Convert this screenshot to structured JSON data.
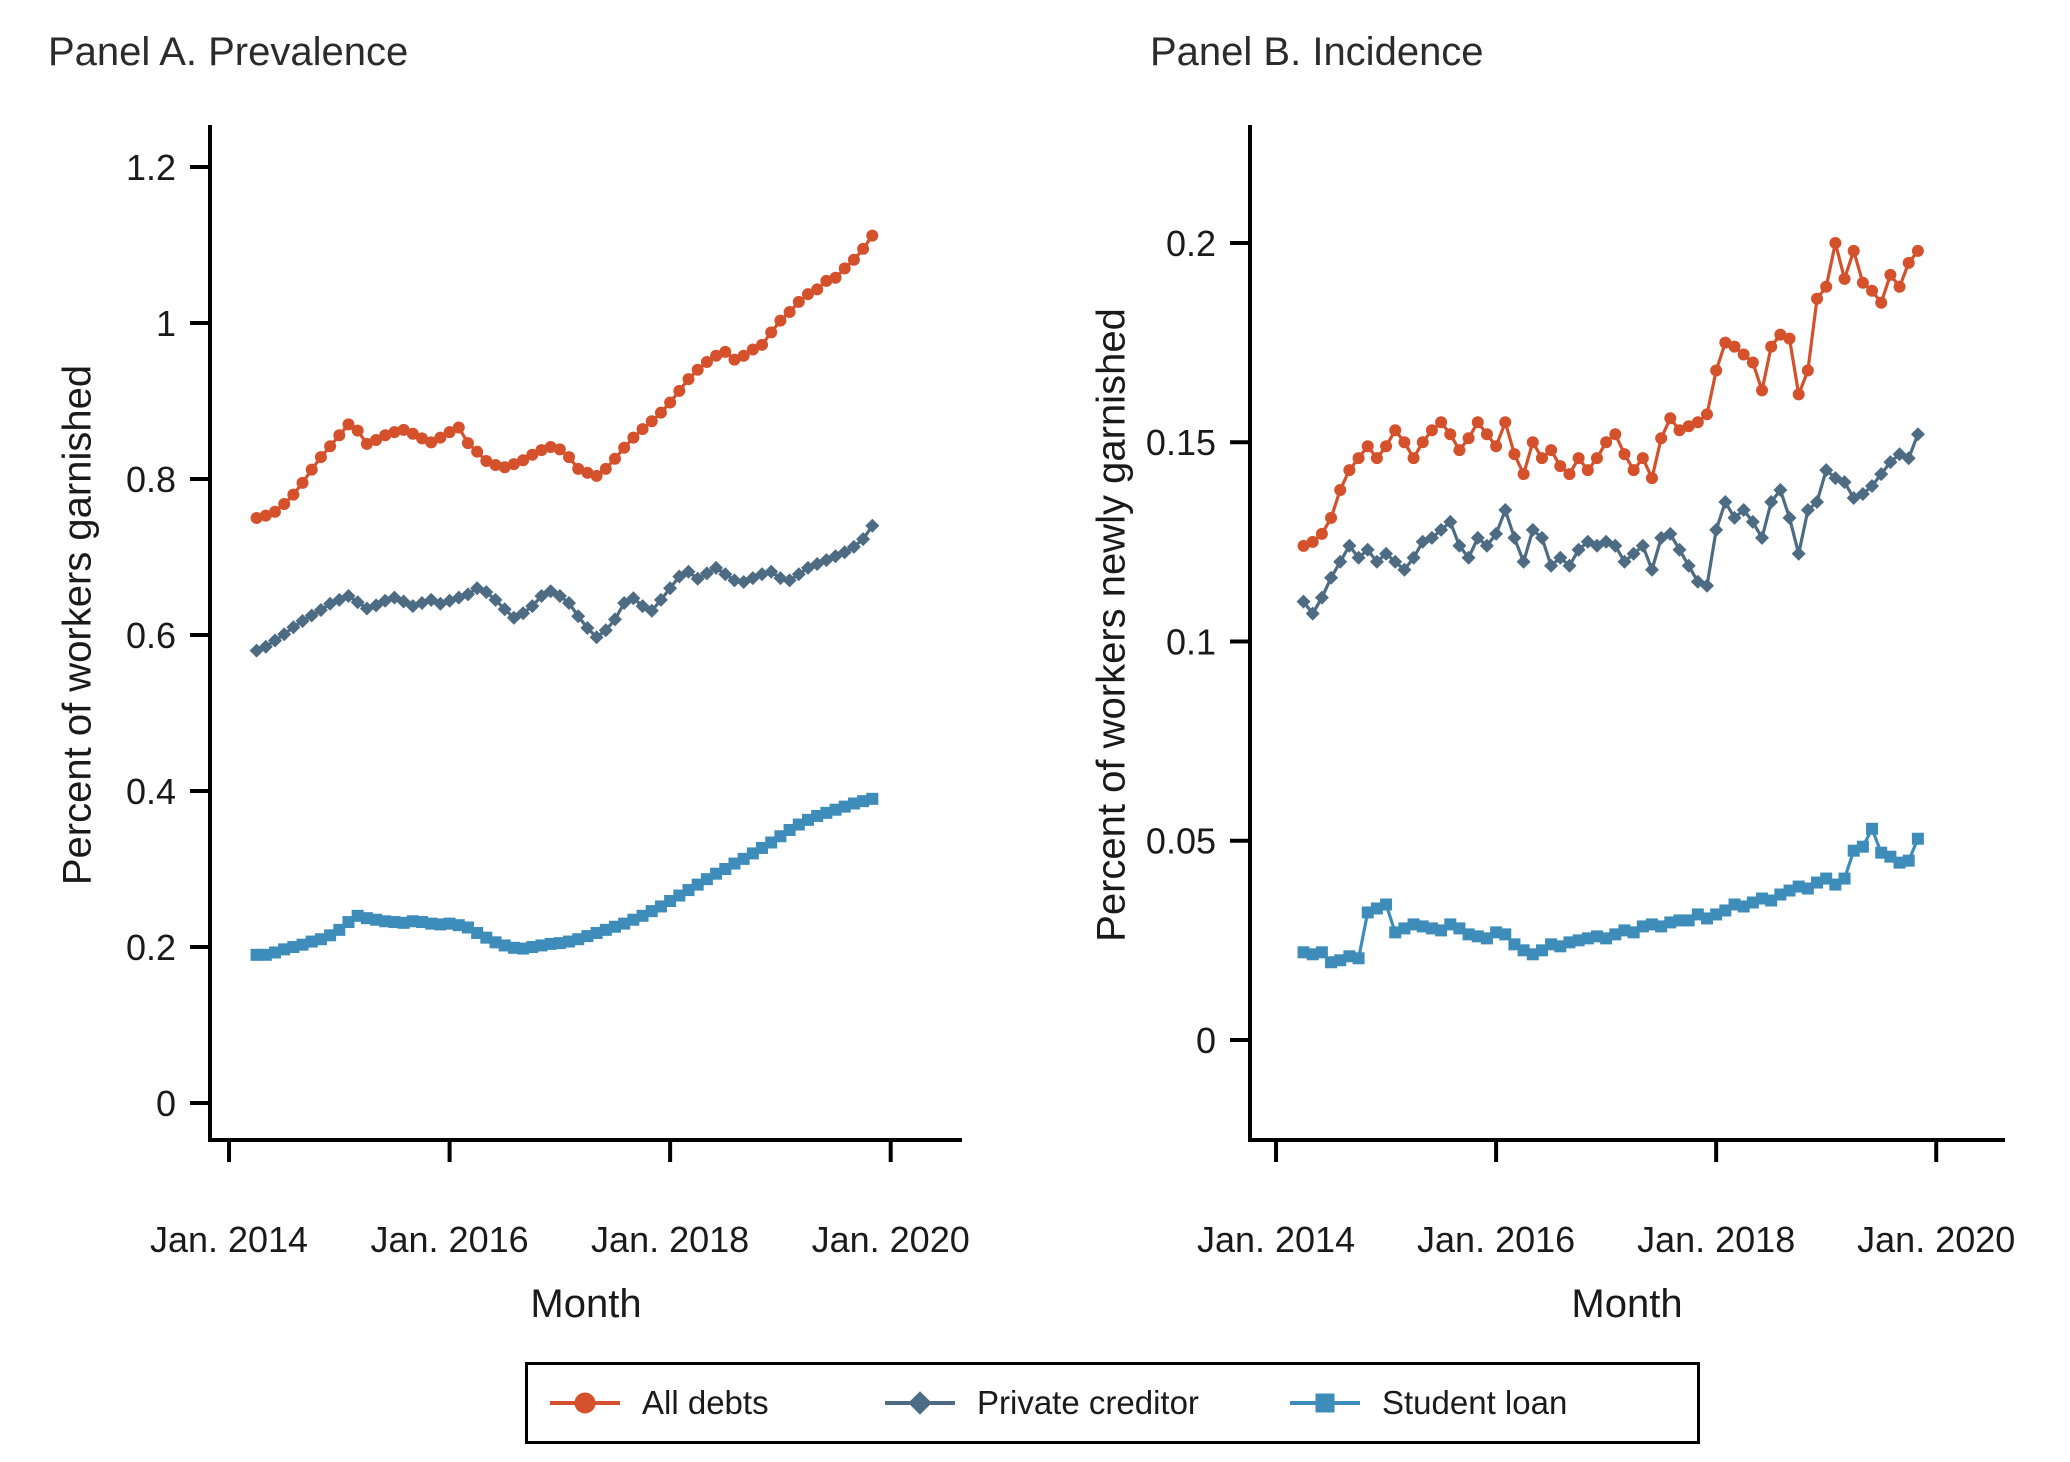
{
  "figure": {
    "panel_a_title": "Panel A. Prevalence",
    "panel_b_title": "Panel B. Incidence"
  },
  "colors": {
    "all_debts": "#d4512c",
    "private_creditor": "#4d6b82",
    "student_loan": "#3e8cba",
    "axis": "#000000",
    "text": "#1a1a1a"
  },
  "legend": {
    "items": [
      {
        "label": "All debts",
        "marker": "circle",
        "color": "#d4512c"
      },
      {
        "label": "Private creditor",
        "marker": "diamond",
        "color": "#4d6b82"
      },
      {
        "label": "Student loan",
        "marker": "square",
        "color": "#3e8cba"
      }
    ]
  },
  "chart_data": [
    {
      "type": "line",
      "title": "Panel A. Prevalence",
      "xlabel": "Month",
      "ylabel": "Percent of workers garnished",
      "x_unit": "month",
      "x_start": "2014-04",
      "x_start_month": 3,
      "frequency": "monthly",
      "grid": false,
      "xlim": [
        -2.07,
        79.76
      ],
      "ylim": [
        -0.0474,
        1.2538
      ],
      "xticks": [
        {
          "m": 0,
          "label": "Jan. 2014"
        },
        {
          "m": 24,
          "label": "Jan. 2016"
        },
        {
          "m": 48,
          "label": "Jan. 2018"
        },
        {
          "m": 72,
          "label": "Jan. 2020"
        }
      ],
      "yticks": [
        {
          "v": 0,
          "label": "0"
        },
        {
          "v": 0.2,
          "label": "0.2"
        },
        {
          "v": 0.4,
          "label": "0.4"
        },
        {
          "v": 0.6,
          "label": "0.6"
        },
        {
          "v": 0.8,
          "label": "0.8"
        },
        {
          "v": 1.0,
          "label": "1"
        },
        {
          "v": 1.2,
          "label": "1.2"
        }
      ],
      "series": [
        {
          "name": "All debts",
          "marker": "circle",
          "color": "#d4512c",
          "values": [
            0.75,
            0.753,
            0.758,
            0.768,
            0.78,
            0.795,
            0.812,
            0.828,
            0.842,
            0.856,
            0.87,
            0.862,
            0.845,
            0.85,
            0.856,
            0.86,
            0.863,
            0.858,
            0.852,
            0.847,
            0.853,
            0.86,
            0.866,
            0.846,
            0.835,
            0.823,
            0.818,
            0.815,
            0.819,
            0.824,
            0.831,
            0.837,
            0.841,
            0.838,
            0.828,
            0.813,
            0.808,
            0.804,
            0.813,
            0.826,
            0.84,
            0.853,
            0.864,
            0.874,
            0.885,
            0.898,
            0.913,
            0.928,
            0.94,
            0.95,
            0.958,
            0.963,
            0.953,
            0.958,
            0.966,
            0.972,
            0.988,
            1.003,
            1.014,
            1.027,
            1.037,
            1.043,
            1.054,
            1.058,
            1.07,
            1.081,
            1.095,
            1.112
          ]
        },
        {
          "name": "Private creditor",
          "marker": "diamond",
          "color": "#4d6b82",
          "values": [
            0.58,
            0.585,
            0.593,
            0.601,
            0.61,
            0.618,
            0.625,
            0.632,
            0.64,
            0.645,
            0.65,
            0.642,
            0.634,
            0.638,
            0.644,
            0.648,
            0.643,
            0.637,
            0.641,
            0.645,
            0.64,
            0.644,
            0.648,
            0.652,
            0.66,
            0.655,
            0.645,
            0.633,
            0.622,
            0.628,
            0.637,
            0.65,
            0.656,
            0.65,
            0.641,
            0.624,
            0.609,
            0.597,
            0.606,
            0.62,
            0.641,
            0.647,
            0.637,
            0.631,
            0.645,
            0.66,
            0.675,
            0.681,
            0.672,
            0.679,
            0.686,
            0.678,
            0.67,
            0.668,
            0.673,
            0.678,
            0.681,
            0.673,
            0.67,
            0.678,
            0.686,
            0.691,
            0.696,
            0.701,
            0.706,
            0.713,
            0.723,
            0.74
          ]
        },
        {
          "name": "Student loan",
          "marker": "square",
          "color": "#3e8cba",
          "values": [
            0.19,
            0.19,
            0.193,
            0.197,
            0.2,
            0.203,
            0.207,
            0.21,
            0.215,
            0.222,
            0.232,
            0.24,
            0.237,
            0.235,
            0.233,
            0.232,
            0.231,
            0.233,
            0.232,
            0.23,
            0.229,
            0.23,
            0.228,
            0.225,
            0.218,
            0.212,
            0.206,
            0.202,
            0.199,
            0.198,
            0.2,
            0.202,
            0.204,
            0.205,
            0.207,
            0.21,
            0.214,
            0.218,
            0.222,
            0.226,
            0.23,
            0.235,
            0.24,
            0.246,
            0.252,
            0.259,
            0.266,
            0.273,
            0.28,
            0.287,
            0.294,
            0.3,
            0.307,
            0.313,
            0.32,
            0.327,
            0.334,
            0.342,
            0.35,
            0.357,
            0.363,
            0.368,
            0.372,
            0.376,
            0.38,
            0.384,
            0.387,
            0.39
          ]
        }
      ]
    },
    {
      "type": "line",
      "title": "Panel B. Incidence",
      "xlabel": "Month",
      "ylabel": "Percent of workers newly garnished",
      "x_unit": "month",
      "x_start": "2014-04",
      "x_start_month": 3,
      "frequency": "monthly",
      "grid": false,
      "xlim": [
        -2.84,
        79.5
      ],
      "ylim": [
        -0.0251,
        0.2296
      ],
      "xticks": [
        {
          "m": 0,
          "label": "Jan. 2014"
        },
        {
          "m": 24,
          "label": "Jan. 2016"
        },
        {
          "m": 48,
          "label": "Jan. 2018"
        },
        {
          "m": 72,
          "label": "Jan. 2020"
        }
      ],
      "yticks": [
        {
          "v": 0,
          "label": "0"
        },
        {
          "v": 0.05,
          "label": "0.05"
        },
        {
          "v": 0.1,
          "label": "0.1"
        },
        {
          "v": 0.15,
          "label": "0.15"
        },
        {
          "v": 0.2,
          "label": "0.2"
        }
      ],
      "series": [
        {
          "name": "All debts",
          "marker": "circle",
          "color": "#d4512c",
          "values": [
            0.124,
            0.125,
            0.127,
            0.131,
            0.138,
            0.143,
            0.146,
            0.149,
            0.146,
            0.149,
            0.153,
            0.15,
            0.146,
            0.15,
            0.153,
            0.155,
            0.152,
            0.148,
            0.151,
            0.155,
            0.152,
            0.149,
            0.155,
            0.147,
            0.142,
            0.15,
            0.146,
            0.148,
            0.144,
            0.142,
            0.146,
            0.143,
            0.146,
            0.15,
            0.152,
            0.147,
            0.143,
            0.146,
            0.141,
            0.151,
            0.156,
            0.153,
            0.154,
            0.155,
            0.157,
            0.168,
            0.175,
            0.174,
            0.172,
            0.17,
            0.163,
            0.174,
            0.177,
            0.176,
            0.162,
            0.168,
            0.186,
            0.189,
            0.2,
            0.191,
            0.198,
            0.19,
            0.188,
            0.185,
            0.192,
            0.189,
            0.195,
            0.198
          ]
        },
        {
          "name": "Private creditor",
          "marker": "diamond",
          "color": "#4d6b82",
          "values": [
            0.11,
            0.107,
            0.111,
            0.116,
            0.12,
            0.124,
            0.121,
            0.123,
            0.12,
            0.122,
            0.12,
            0.118,
            0.121,
            0.125,
            0.126,
            0.128,
            0.13,
            0.124,
            0.121,
            0.126,
            0.124,
            0.127,
            0.133,
            0.126,
            0.12,
            0.128,
            0.126,
            0.119,
            0.121,
            0.119,
            0.123,
            0.125,
            0.124,
            0.125,
            0.124,
            0.12,
            0.122,
            0.124,
            0.118,
            0.126,
            0.127,
            0.123,
            0.119,
            0.115,
            0.114,
            0.128,
            0.135,
            0.131,
            0.133,
            0.13,
            0.126,
            0.135,
            0.138,
            0.131,
            0.122,
            0.133,
            0.135,
            0.143,
            0.141,
            0.14,
            0.136,
            0.137,
            0.139,
            0.142,
            0.145,
            0.147,
            0.146,
            0.152
          ]
        },
        {
          "name": "Student loan",
          "marker": "square",
          "color": "#3e8cba",
          "values": [
            0.022,
            0.0215,
            0.022,
            0.0195,
            0.02,
            0.021,
            0.0205,
            0.032,
            0.033,
            0.034,
            0.027,
            0.028,
            0.029,
            0.0285,
            0.028,
            0.0275,
            0.029,
            0.028,
            0.0265,
            0.026,
            0.0255,
            0.027,
            0.0265,
            0.024,
            0.0225,
            0.0215,
            0.0225,
            0.024,
            0.0235,
            0.0245,
            0.025,
            0.0255,
            0.026,
            0.0255,
            0.0265,
            0.0275,
            0.027,
            0.0285,
            0.029,
            0.0285,
            0.0295,
            0.03,
            0.03,
            0.0315,
            0.0305,
            0.0315,
            0.0325,
            0.034,
            0.0335,
            0.0345,
            0.0355,
            0.035,
            0.0365,
            0.0375,
            0.0385,
            0.038,
            0.0395,
            0.0405,
            0.039,
            0.0405,
            0.0475,
            0.0485,
            0.053,
            0.047,
            0.046,
            0.0445,
            0.045,
            0.0505
          ]
        }
      ]
    }
  ]
}
